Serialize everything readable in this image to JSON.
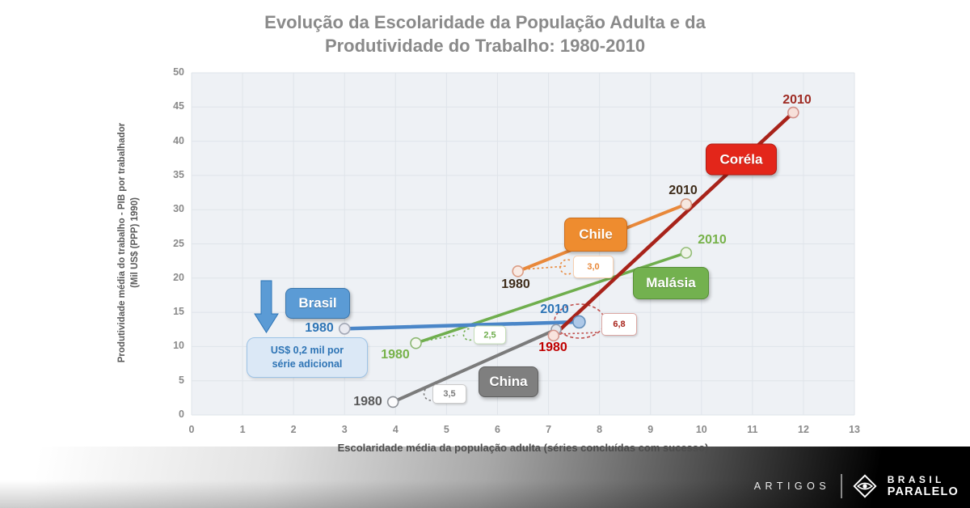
{
  "title": {
    "line1": "Evolução da Escolaridade da População Adulta e da",
    "line2": "Produtividade do Trabalho: 1980-2010"
  },
  "chart_data": {
    "type": "scatter",
    "title": "Evolução da Escolaridade da População Adulta e da Produtividade do Trabalho: 1980-2010",
    "xlabel": "Escolaridade média da população adulta (séries concluídas com sucesso)",
    "ylabel_line1": "Produtividade média do trabalho - PIB por trabalhador",
    "ylabel_line2": "(Mil US$ (PPP) 1990)",
    "xlim": [
      0,
      13
    ],
    "ylim": [
      0,
      50
    ],
    "xticks": [
      0,
      1,
      2,
      3,
      4,
      5,
      6,
      7,
      8,
      9,
      10,
      11,
      12,
      13
    ],
    "yticks": [
      0,
      5,
      10,
      15,
      20,
      25,
      30,
      35,
      40,
      45,
      50
    ],
    "grid": true,
    "series": [
      {
        "name": "Brasil",
        "color": "#4a86c8",
        "label_bg": "#5b9bd5",
        "label_border": "#3a76ac",
        "slope_label": null,
        "points": [
          {
            "year": 1980,
            "x": 3.0,
            "y": 12.6,
            "label_color": "#2e75b6"
          },
          {
            "year": 2010,
            "x": 7.6,
            "y": 13.6,
            "label_color": "#2e75b6"
          }
        ]
      },
      {
        "name": "China",
        "color": "#7b7b7b",
        "label_bg": "#7f7f7f",
        "label_border": "#5f5f5f",
        "slope_label": "3,5",
        "points": [
          {
            "year": 1980,
            "x": 3.95,
            "y": 1.9,
            "label_color": "#595959"
          },
          {
            "year": 2010,
            "x": 7.15,
            "y": 12.5,
            "label_color": null
          }
        ]
      },
      {
        "name": "Malásia",
        "color": "#6fae4d",
        "label_bg": "#73b14f",
        "label_border": "#578f37",
        "slope_label": "2,5",
        "points": [
          {
            "year": 1980,
            "x": 4.4,
            "y": 10.5,
            "label_color": "#77b24a"
          },
          {
            "year": 2010,
            "x": 9.7,
            "y": 23.7,
            "label_color": "#77b24a"
          }
        ]
      },
      {
        "name": "Chile",
        "color": "#e8883a",
        "label_bg": "#ee8c2f",
        "label_border": "#cb6d1d",
        "slope_label": "3,0",
        "points": [
          {
            "year": 1980,
            "x": 6.4,
            "y": 21.0,
            "label_color": "#3f2d1b"
          },
          {
            "year": 2010,
            "x": 9.7,
            "y": 30.8,
            "label_color": "#3f2d1b"
          }
        ]
      },
      {
        "name": "Coréla",
        "color": "#a8231a",
        "label_bg": "#e3261a",
        "label_border": "#b21a12",
        "slope_label": "6,8",
        "points": [
          {
            "year": 1980,
            "x": 7.1,
            "y": 11.6,
            "label_color": "#c00000"
          },
          {
            "year": 2010,
            "x": 11.8,
            "y": 44.2,
            "label_color": "#9e2b23"
          }
        ]
      }
    ],
    "note": {
      "line1": "US$ 0,2 mil por",
      "line2": "série adicional"
    },
    "accent_arrow_color": "#5b9bd5"
  },
  "footer": {
    "artigos": "ARTIGOS",
    "brand_top": "BRASIL",
    "brand_bottom": "PARALELO"
  }
}
